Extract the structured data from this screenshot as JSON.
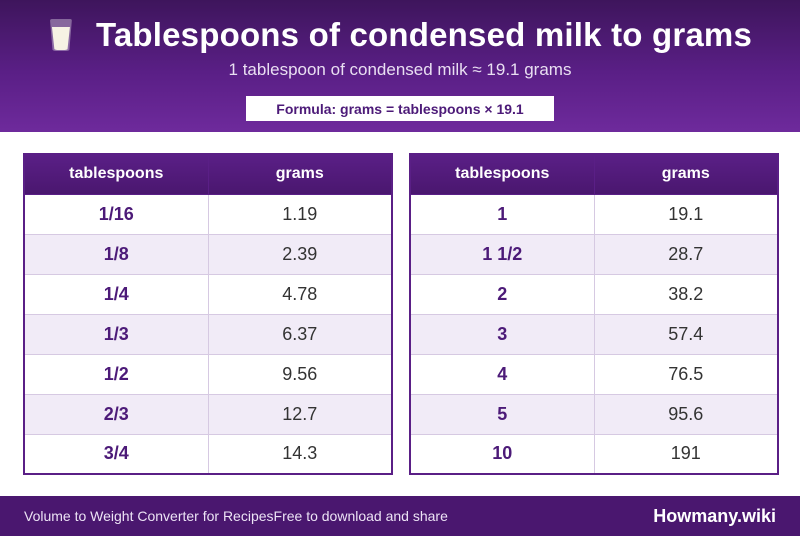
{
  "header": {
    "title": "Tablespoons of condensed milk to grams",
    "subtitle": "1 tablespoon of condensed milk ≈ 19.1 grams",
    "formula": "Formula: grams = tablespoons × 19.1",
    "icon": "milk-glass-icon"
  },
  "tables": {
    "left": {
      "headers": [
        "tablespoons",
        "grams"
      ],
      "rows": [
        [
          "1/16",
          "1.19"
        ],
        [
          "1/8",
          "2.39"
        ],
        [
          "1/4",
          "4.78"
        ],
        [
          "1/3",
          "6.37"
        ],
        [
          "1/2",
          "9.56"
        ],
        [
          "2/3",
          "12.7"
        ],
        [
          "3/4",
          "14.3"
        ]
      ]
    },
    "right": {
      "headers": [
        "tablespoons",
        "grams"
      ],
      "rows": [
        [
          "1",
          "19.1"
        ],
        [
          "1 1/2",
          "28.7"
        ],
        [
          "2",
          "38.2"
        ],
        [
          "3",
          "57.4"
        ],
        [
          "4",
          "76.5"
        ],
        [
          "5",
          "95.6"
        ],
        [
          "10",
          "191"
        ]
      ]
    }
  },
  "footer": {
    "left_text_1": "Volume to Weight Converter for Recipes",
    "left_text_2": "Free to download and share",
    "brand": "Howmany.wiki"
  },
  "colors": {
    "brand_purple": "#5a1f86",
    "header_dark": "#3e155c",
    "accent_text": "#4c1a78",
    "row_alt": "#f1ebf7"
  }
}
